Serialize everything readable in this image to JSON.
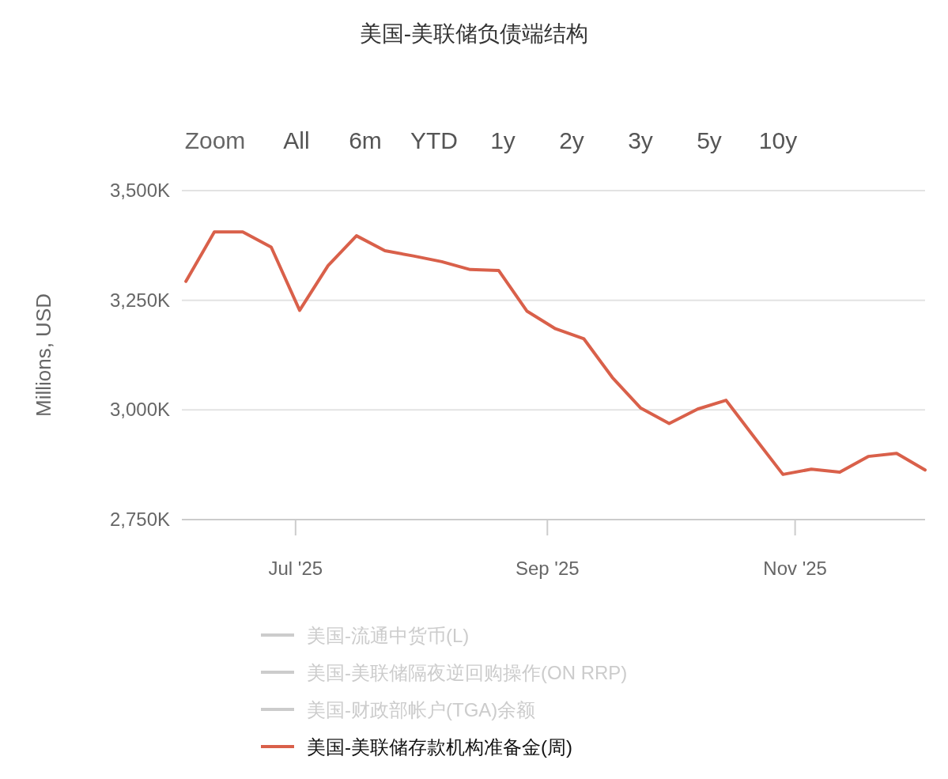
{
  "chart_data": {
    "type": "line",
    "title": "美国-美联储负债端结构",
    "annotations": [
      "Zoom",
      "All",
      "6m",
      "YTD",
      "1y",
      "2y",
      "3y",
      "5y",
      "10y"
    ],
    "ylabel": "Millions, USD",
    "x": [
      "2025-06-04",
      "2025-06-11",
      "2025-06-18",
      "2025-06-25",
      "2025-07-02",
      "2025-07-09",
      "2025-07-16",
      "2025-07-23",
      "2025-07-30",
      "2025-08-06",
      "2025-08-13",
      "2025-08-20",
      "2025-08-27",
      "2025-09-03",
      "2025-09-10",
      "2025-09-17",
      "2025-09-24",
      "2025-10-01",
      "2025-10-08",
      "2025-10-15",
      "2025-10-22",
      "2025-10-29",
      "2025-11-05",
      "2025-11-12",
      "2025-11-19",
      "2025-11-26",
      "2025-12-03"
    ],
    "series": [
      {
        "name": "美国-流通中货币(L)",
        "color": "#cccccc",
        "values": [
          null,
          null,
          null,
          null,
          null,
          null,
          null,
          null,
          null,
          null,
          null,
          null,
          null,
          null,
          null,
          null,
          null,
          null,
          null,
          null,
          null,
          null,
          null,
          null,
          null,
          null,
          null
        ]
      },
      {
        "name": "美国-美联储隔夜逆回购操作(ON RRP)",
        "color": "#cccccc",
        "values": [
          null,
          null,
          null,
          null,
          null,
          null,
          null,
          null,
          null,
          null,
          null,
          null,
          null,
          null,
          null,
          null,
          null,
          null,
          null,
          null,
          null,
          null,
          null,
          null,
          null,
          null,
          null
        ]
      },
      {
        "name": "美国-财政部帐户(TGA)余额",
        "color": "#cccccc",
        "values": [
          null,
          null,
          null,
          null,
          null,
          null,
          null,
          null,
          null,
          null,
          null,
          null,
          null,
          null,
          null,
          null,
          null,
          null,
          null,
          null,
          null,
          null,
          null,
          null,
          null,
          null,
          null
        ]
      },
      {
        "name": "美国-美联储存款机构准备金(周)",
        "color": "#d9604a",
        "values": [
          3293,
          3406,
          3406,
          3371,
          3227,
          3329,
          3397,
          3363,
          3351,
          3338,
          3320,
          3318,
          3225,
          3185,
          3162,
          3074,
          3004,
          2969,
          3002,
          3022,
          2937,
          2853,
          2865,
          2858,
          2894,
          2901,
          2863
        ]
      }
    ],
    "xlim": [
      "2025-06-03",
      "2025-12-03"
    ],
    "xticks": [
      {
        "value": "2025-07-01",
        "label": "Jul '25"
      },
      {
        "value": "2025-09-01",
        "label": "Sep '25"
      },
      {
        "value": "2025-11-01",
        "label": "Nov '25"
      }
    ],
    "ylim": [
      2750,
      3500
    ],
    "yticks": [
      {
        "value": 2750,
        "label": "2,750K"
      },
      {
        "value": 3000,
        "label": "3,000K"
      },
      {
        "value": 3250,
        "label": "3,250K"
      },
      {
        "value": 3500,
        "label": "3,500K"
      }
    ],
    "grid": "y",
    "legend": "bottom",
    "marker": "none",
    "line_style": "solid"
  }
}
